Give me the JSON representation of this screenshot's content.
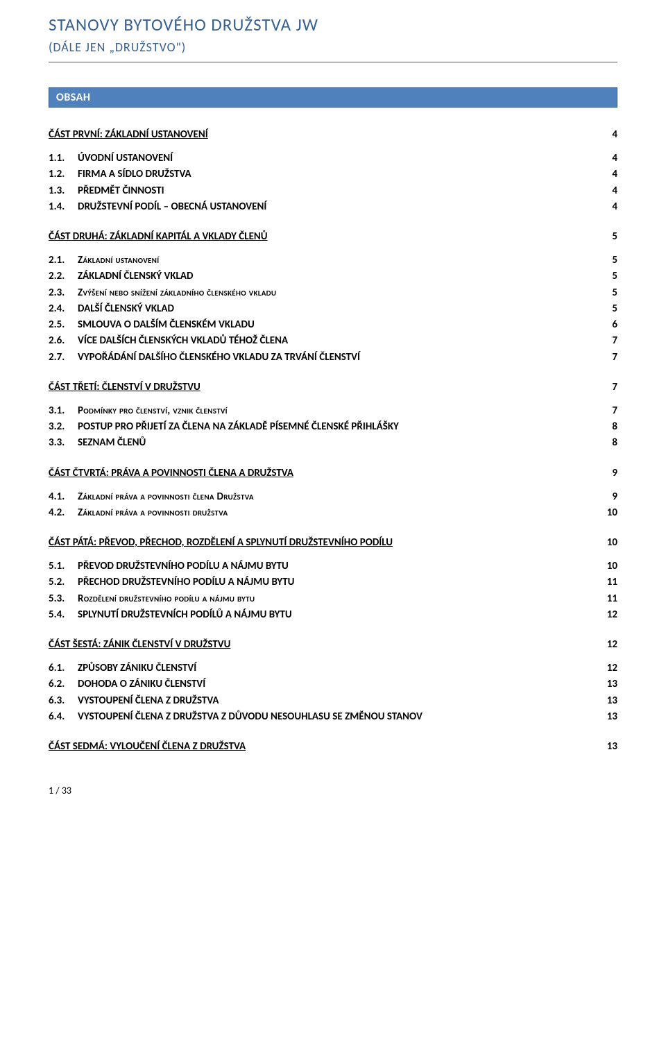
{
  "header": {
    "title": "STANOVY BYTOVÉHO DRUŽSTVA JW",
    "subtitle": "(DÁLE JEN „DRUŽSTVO\")"
  },
  "obsah_label": "OBSAH",
  "sections": [
    {
      "label": "ČÁST PRVNÍ: ZÁKLADNÍ USTANOVENÍ",
      "page": "4",
      "entries": [
        {
          "num": "1.1.",
          "text": "ÚVODNÍ USTANOVENÍ",
          "page": "4",
          "style": "bold"
        },
        {
          "num": "1.2.",
          "text": "FIRMA A SÍDLO DRUŽSTVA",
          "page": "4",
          "style": "bold"
        },
        {
          "num": "1.3.",
          "text": "PŘEDMĚT ČINNOSTI",
          "page": "4",
          "style": "bold"
        },
        {
          "num": "1.4.",
          "text": "DRUŽSTEVNÍ PODÍL – OBECNÁ USTANOVENÍ",
          "page": "4",
          "style": "bold"
        }
      ]
    },
    {
      "label": "ČÁST DRUHÁ: ZÁKLADNÍ KAPITÁL A VKLADY ČLENŮ",
      "page": "5",
      "entries": [
        {
          "num": "2.1.",
          "text": "Základní ustanovení",
          "page": "5",
          "style": "smallcap"
        },
        {
          "num": "2.2.",
          "text": "ZÁKLADNÍ ČLENSKÝ VKLAD",
          "page": "5",
          "style": "bold"
        },
        {
          "num": "2.3.",
          "text": "Zvýšení nebo snížení základního členského vkladu",
          "page": "5",
          "style": "smallcap"
        },
        {
          "num": "2.4.",
          "text": "DALŠÍ ČLENSKÝ VKLAD",
          "page": "5",
          "style": "bold"
        },
        {
          "num": "2.5.",
          "text": "SMLOUVA O DALŠÍM ČLENSKÉM VKLADU",
          "page": "6",
          "style": "bold"
        },
        {
          "num": "2.6.",
          "text": "VÍCE DALŠÍCH ČLENSKÝCH VKLADŮ TÉHOŽ ČLENA",
          "page": "7",
          "style": "bold"
        },
        {
          "num": "2.7.",
          "text": "VYPOŘÁDÁNÍ DALŠÍHO ČLENSKÉHO VKLADU ZA TRVÁNÍ ČLENSTVÍ",
          "page": "7",
          "style": "bold"
        }
      ]
    },
    {
      "label": "ČÁST TŘETÍ: ČLENSTVÍ V DRUŽSTVU",
      "page": "7",
      "entries": [
        {
          "num": "3.1.",
          "text": "Podmínky pro členství, vznik členství",
          "page": "7",
          "style": "smallcap"
        },
        {
          "num": "3.2.",
          "text": "POSTUP PRO PŘIJETÍ ZA ČLENA NA ZÁKLADĚ PÍSEMNÉ ČLENSKÉ PŘIHLÁŠKY",
          "page": "8",
          "style": "bold"
        },
        {
          "num": "3.3.",
          "text": "SEZNAM ČLENŮ",
          "page": "8",
          "style": "bold"
        }
      ]
    },
    {
      "label": "ČÁST ČTVRTÁ: PRÁVA A POVINNOSTI ČLENA A DRUŽSTVA",
      "page": "9",
      "entries": [
        {
          "num": "4.1.",
          "text": "Základní práva a povinnosti člena Družstva",
          "page": "9",
          "style": "smallcap"
        },
        {
          "num": "4.2.",
          "text": "Základní práva a povinnosti družstva",
          "page": "10",
          "style": "smallcap"
        }
      ]
    },
    {
      "label": "ČÁST PÁTÁ: PŘEVOD, PŘECHOD, ROZDĚLENÍ A SPLYNUTÍ DRUŽSTEVNÍHO PODÍLU",
      "page": "10",
      "entries": [
        {
          "num": "5.1.",
          "text": "PŘEVOD DRUŽSTEVNÍHO PODÍLU A NÁJMU BYTU",
          "page": "10",
          "style": "bold"
        },
        {
          "num": "5.2.",
          "text": "PŘECHOD DRUŽSTEVNÍHO PODÍLU A NÁJMU BYTU",
          "page": "11",
          "style": "bold"
        },
        {
          "num": "5.3.",
          "text": "Rozdělení družstevního podílu a nájmu bytu",
          "page": "11",
          "style": "smallcap"
        },
        {
          "num": "5.4.",
          "text": "SPLYNUTÍ DRUŽSTEVNÍCH PODÍLŮ A NÁJMU BYTU",
          "page": "12",
          "style": "bold"
        }
      ]
    },
    {
      "label": "ČÁST ŠESTÁ: ZÁNIK ČLENSTVÍ V DRUŽSTVU",
      "page": "12",
      "entries": [
        {
          "num": "6.1.",
          "text": "ZPŮSOBY ZÁNIKU ČLENSTVÍ",
          "page": "12",
          "style": "bold"
        },
        {
          "num": "6.2.",
          "text": "DOHODA O ZÁNIKU ČLENSTVÍ",
          "page": "13",
          "style": "bold"
        },
        {
          "num": "6.3.",
          "text": "VYSTOUPENÍ ČLENA Z DRUŽSTVA",
          "page": "13",
          "style": "bold"
        },
        {
          "num": "6.4.",
          "text": "VYSTOUPENÍ ČLENA Z DRUŽSTVA Z DŮVODU NESOUHLASU SE ZMĚNOU STANOV",
          "page": "13",
          "style": "bold"
        }
      ]
    },
    {
      "label": "ČÁST SEDMÁ: VYLOUČENÍ ČLENA Z DRUŽSTVA",
      "page": "13",
      "entries": []
    }
  ],
  "footer": "1 / 33",
  "colors": {
    "title": "#365f91",
    "bar_bg": "#4f81bd",
    "bar_border": "#2f528f",
    "text": "#000000",
    "bg": "#ffffff"
  }
}
